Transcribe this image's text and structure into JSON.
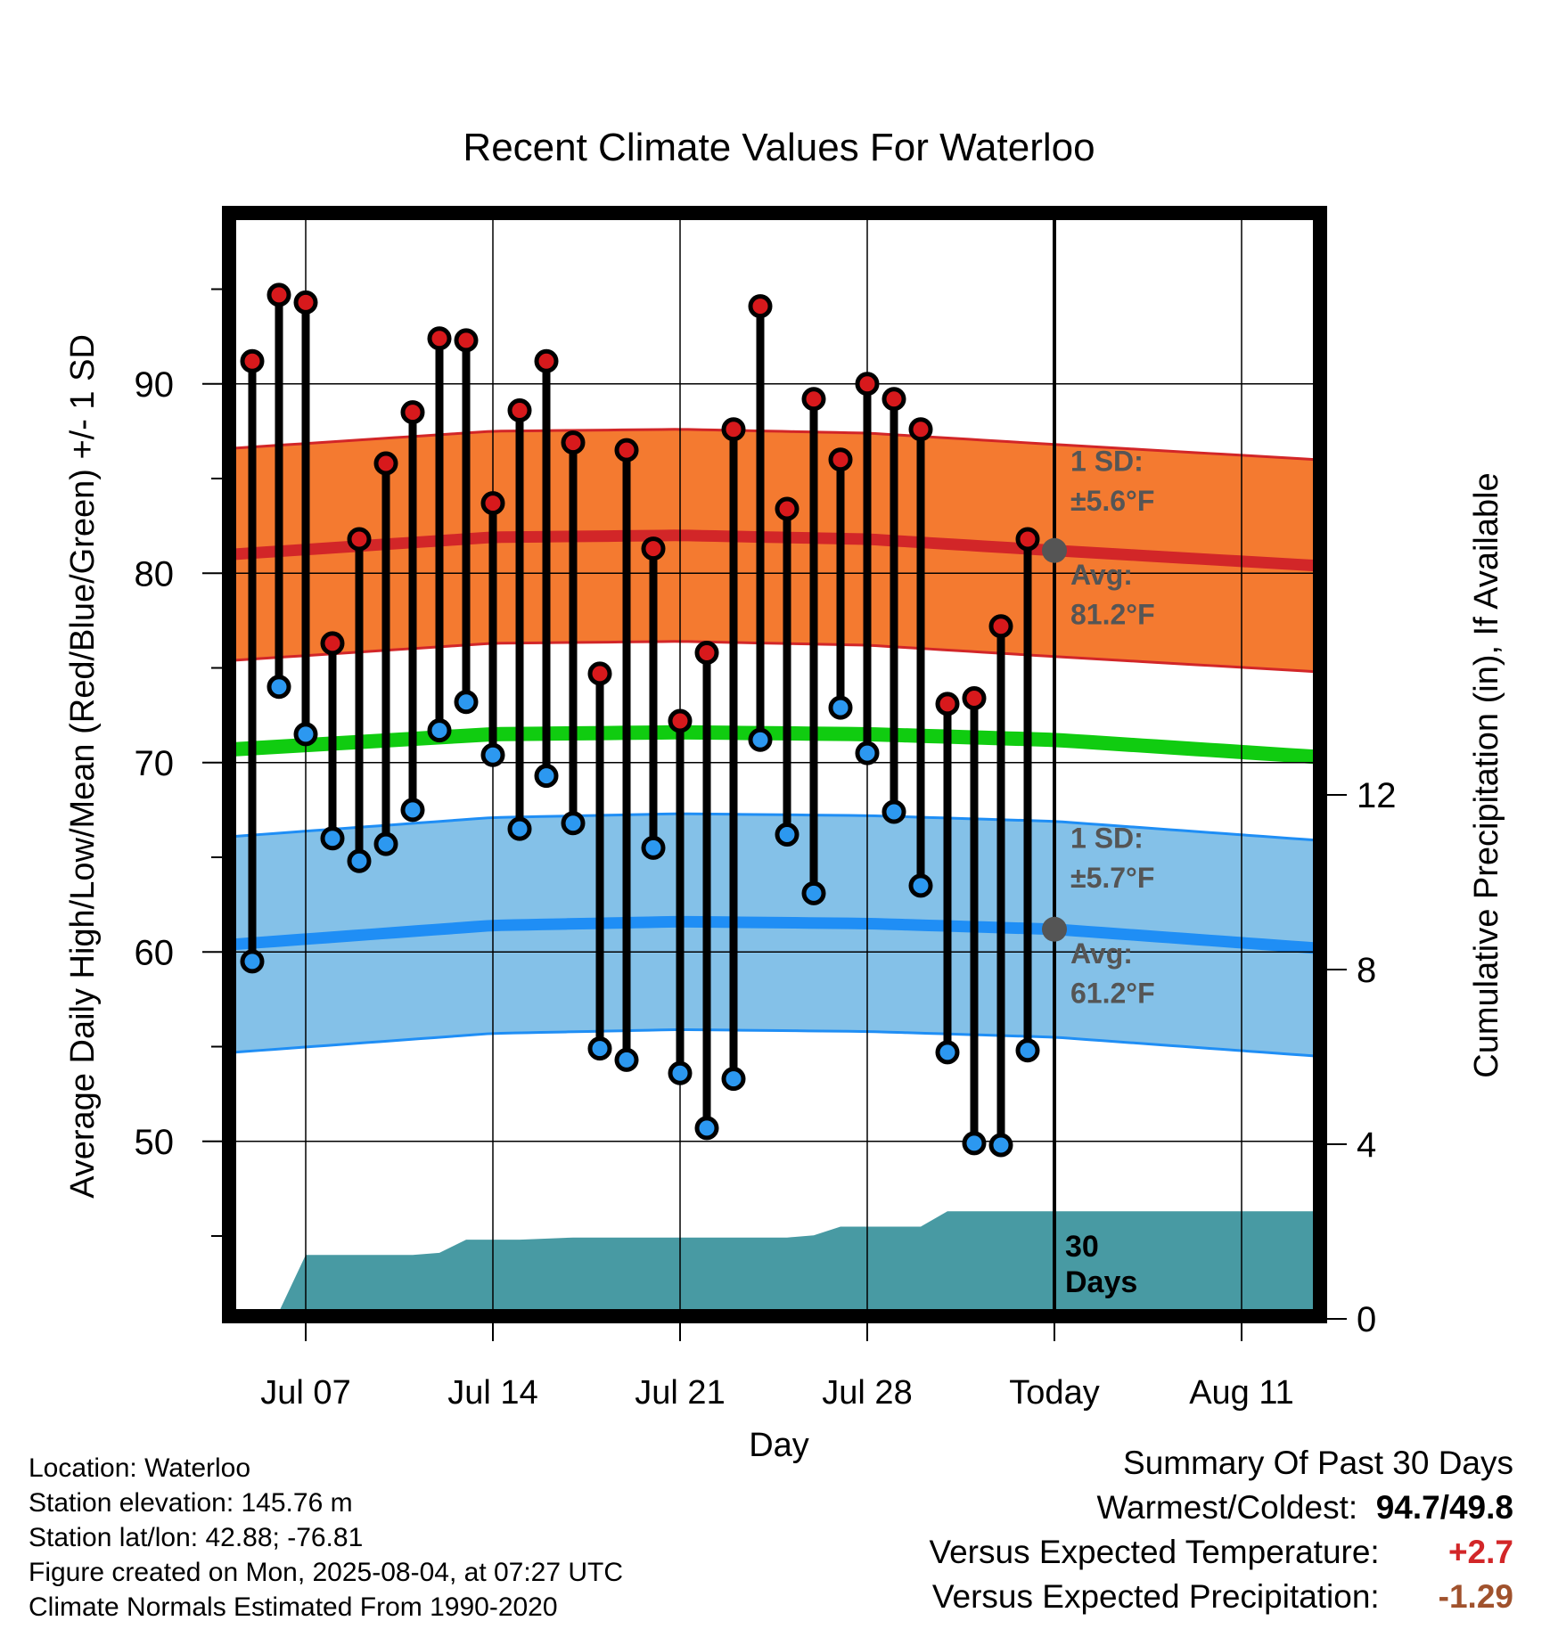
{
  "chart_data": {
    "type": "line",
    "title": "Recent Climate Values For Waterloo",
    "xlabel": "Day",
    "ylabel": "Average Daily High/Low/Mean (Red/Blue/Green) +/- 1 SD",
    "y2label": "Cumulative Precipitation (in), If Available",
    "ylim": [
      41,
      99
    ],
    "y2lim": [
      0,
      24
    ],
    "x_ticks": [
      "Jul 07",
      "Jul 14",
      "Jul 21",
      "Jul 28",
      "Today",
      "Aug 11"
    ],
    "x_tick_days": [
      7,
      14,
      21,
      28,
      35,
      42
    ],
    "y_ticks": [
      50,
      60,
      70,
      80,
      90
    ],
    "y2_ticks": [
      0,
      4,
      8,
      12
    ],
    "xlim_days": [
      4.3,
      44.8
    ],
    "grid": true,
    "days": [
      5,
      6,
      7,
      8,
      9,
      10,
      11,
      12,
      13,
      14,
      15,
      16,
      17,
      18,
      19,
      20,
      21,
      22,
      23,
      24,
      25,
      26,
      27,
      28,
      29,
      30,
      31,
      32,
      33,
      34
    ],
    "series": [
      {
        "name": "High",
        "color": "#d7191c",
        "values": [
          91.2,
          94.7,
          94.3,
          76.3,
          81.8,
          85.8,
          88.5,
          92.4,
          92.3,
          83.7,
          88.6,
          91.2,
          86.9,
          74.7,
          86.5,
          81.3,
          72.2,
          75.8,
          87.6,
          94.1,
          83.4,
          89.2,
          86.0,
          90.0,
          89.2,
          87.6,
          73.1,
          73.4,
          77.2,
          81.8
        ]
      },
      {
        "name": "Low",
        "color": "#2c98f0",
        "values": [
          59.5,
          74.0,
          71.5,
          66.0,
          64.8,
          65.7,
          67.5,
          71.7,
          73.2,
          70.4,
          66.5,
          69.3,
          66.8,
          54.9,
          54.3,
          65.5,
          53.6,
          50.7,
          53.3,
          71.2,
          66.2,
          63.1,
          72.9,
          70.5,
          67.4,
          63.5,
          54.7,
          49.9,
          49.8,
          54.8
        ]
      }
    ],
    "normals": {
      "days": [
        4.3,
        14,
        21,
        28,
        35,
        44.8
      ],
      "high_avg": [
        81.0,
        81.9,
        82.0,
        81.8,
        81.2,
        80.4
      ],
      "high_sd": 5.6,
      "low_avg": [
        60.4,
        61.4,
        61.6,
        61.5,
        61.2,
        60.2
      ],
      "low_sd": 5.7,
      "mean_avg": [
        70.7,
        71.5,
        71.6,
        71.5,
        71.2,
        70.3
      ]
    },
    "precip": {
      "days": [
        5,
        6,
        7,
        11,
        12,
        13,
        14,
        15,
        17,
        20,
        21,
        25,
        26,
        27,
        29,
        30,
        31,
        32,
        35,
        44.8
      ],
      "values": [
        0,
        0,
        1.3,
        1.3,
        1.35,
        1.65,
        1.65,
        1.65,
        1.7,
        1.7,
        1.7,
        1.7,
        1.75,
        1.95,
        1.95,
        1.95,
        2.3,
        2.3,
        2.3,
        2.3
      ]
    },
    "today_marker_day": 35,
    "annotations": {
      "high_sd_label": "1 SD:",
      "high_sd_value": "±5.6°F",
      "high_avg_label": "Avg:",
      "high_avg_value": "81.2°F",
      "low_sd_label": "1 SD:",
      "low_sd_value": "±5.7°F",
      "low_avg_label": "Avg:",
      "low_avg_value": "61.2°F",
      "period_line1": "30",
      "period_line2": "Days"
    },
    "colors": {
      "high_band": "#f47a30",
      "high_avg": "#d22628",
      "low_band": "#84c1e8",
      "low_avg": "#1f8ef5",
      "mean": "#10cc10",
      "precip": "#489aa3",
      "today_dot": "#555555"
    }
  },
  "info": {
    "location": "Location: Waterloo",
    "elevation": "Station elevation: 145.76 m",
    "latlon": "Station lat/lon: 42.88; -76.81",
    "created": "Figure created on Mon, 2025-08-04, at 07:27 UTC",
    "normals": "Climate Normals Estimated From 1990-2020"
  },
  "summary": {
    "title": "Summary Of Past 30 Days",
    "warmest_label": "Warmest/Coldest:",
    "warmest_value": "94.7",
    "coldest_value": "49.8",
    "temp_label": "Versus Expected Temperature:",
    "temp_value": "+2.7",
    "temp_color": "#d22628",
    "precip_label": "Versus Expected Precipitation:",
    "precip_value": "-1.29",
    "precip_color": "#a0522d"
  }
}
